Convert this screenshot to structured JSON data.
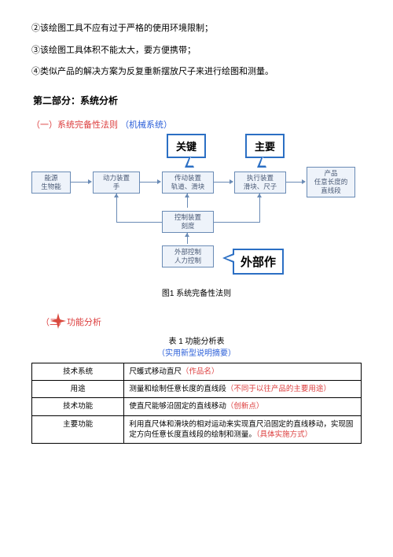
{
  "paras": {
    "p2": "②该绘图工具不应有过于严格的使用环境限制；",
    "p3": "③该绘图工具体积不能太大，要方便携带；",
    "p4": "④类似产品的解决方案为反复重新摆放尺子来进行绘图和测量。"
  },
  "section2_title": "第二部分：系统分析",
  "sub1": {
    "red": "（一）系统完备性法则",
    "blue": "（机械系统）"
  },
  "flow": {
    "n_energy": {
      "l1": "能源",
      "l2": "生物能"
    },
    "n_power": {
      "l1": "动力装置",
      "l2": "手"
    },
    "n_trans": {
      "l1": "传动装置",
      "l2": "轨道、滑块"
    },
    "n_exec": {
      "l1": "执行装置",
      "l2": "滑块、尺子"
    },
    "n_prod": {
      "l1": "产品",
      "l2": "任意长度的",
      "l3": "直线段"
    },
    "n_ctrl": {
      "l1": "控制装置",
      "l2": "刻度"
    },
    "n_ext": {
      "l1": "外部控制",
      "l2": "人力控制"
    },
    "callout_key": "关键",
    "callout_main": "主要",
    "callout_ext": "外部作",
    "colors": {
      "node_border": "#6a8bb5",
      "node_fill": "#eef3fa",
      "callout_border": "#2b6fc4"
    }
  },
  "fig1_caption": "图1 系统完备性法则",
  "sub2_red": "（二）功能分析",
  "table1": {
    "title": "表 1 功能分析表",
    "subtitle": "（实用新型说明摘要）",
    "rows": [
      {
        "label": "技术系统",
        "value_pre": "尺蠖式移动直尺",
        "value_red": "（作品名）",
        "value_post": ""
      },
      {
        "label": "用途",
        "value_pre": "测量和绘制任意长度的直线段",
        "value_red": "（不同于以往产品的主要用途）",
        "value_post": ""
      },
      {
        "label": "技术功能",
        "value_pre": "使直尺能够沿固定的直线移动",
        "value_red": "（创新点）",
        "value_post": ""
      },
      {
        "label": "主要功能",
        "value_pre": "利用直尺体和滑块的相对运动来实现直尺沿固定的直线移动，实现固定方向任意长度直线段的绘制和测量。",
        "value_red": "（具体实施方式）",
        "value_post": ""
      }
    ]
  }
}
